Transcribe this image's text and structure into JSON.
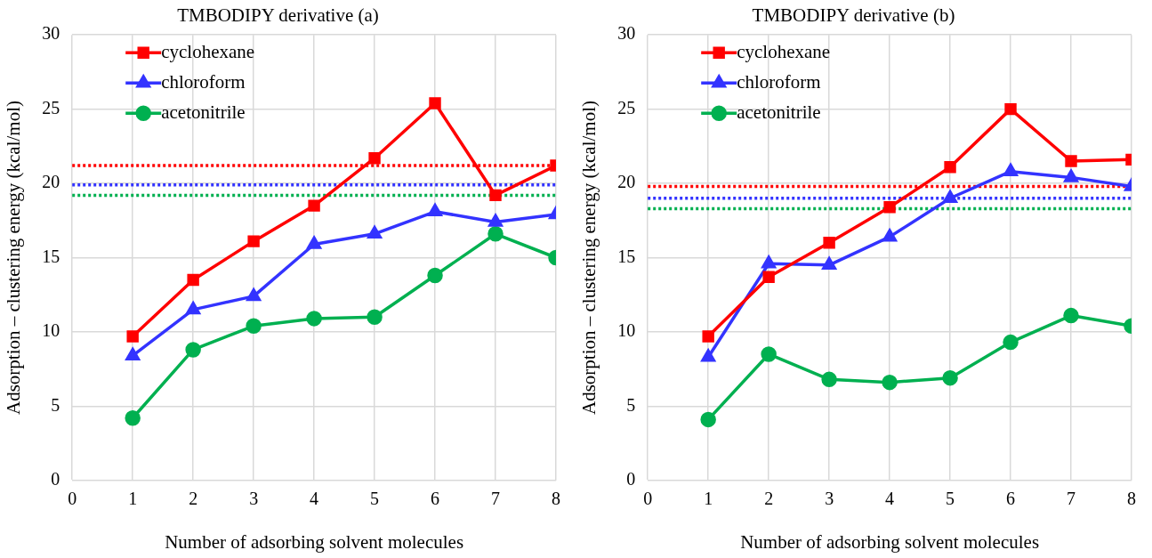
{
  "chart_data": [
    {
      "type": "line",
      "title": "TMBODIPY derivative (a)",
      "xlabel": "Number of adsorbing solvent molecules",
      "ylabel": "Adsorption – clustering energy (kcal/mol)",
      "x": [
        1,
        2,
        3,
        4,
        5,
        6,
        7,
        8
      ],
      "series": [
        {
          "name": "cyclohexane",
          "color": "#ff0000",
          "marker": "square",
          "values": [
            9.7,
            13.5,
            16.1,
            18.5,
            21.7,
            25.4,
            19.2,
            21.2
          ]
        },
        {
          "name": "chloroform",
          "color": "#3333ff",
          "marker": "triangle",
          "values": [
            8.4,
            11.5,
            12.4,
            15.9,
            16.6,
            18.1,
            17.4,
            17.9
          ]
        },
        {
          "name": "acetonitrile",
          "color": "#00b050",
          "marker": "circle",
          "values": [
            4.2,
            8.8,
            10.4,
            10.9,
            11.0,
            13.8,
            16.6,
            15.0
          ]
        }
      ],
      "ref_lines": [
        {
          "axis": "y",
          "value": 21.2,
          "color": "#ff0000",
          "line_style": "dotted"
        },
        {
          "axis": "y",
          "value": 19.9,
          "color": "#3333ff",
          "line_style": "dotted"
        },
        {
          "axis": "y",
          "value": 19.2,
          "color": "#00b050",
          "line_style": "dotted"
        }
      ],
      "xlim": [
        0,
        8
      ],
      "xticks": [
        0,
        1,
        2,
        3,
        4,
        5,
        6,
        7,
        8
      ],
      "ylim": [
        0,
        30
      ],
      "yticks": [
        0,
        5,
        10,
        15,
        20,
        25,
        30
      ],
      "grid": true,
      "legend": "top left",
      "line_style": "solid"
    },
    {
      "type": "line",
      "title": "TMBODIPY derivative (b)",
      "xlabel": "Number of adsorbing solvent molecules",
      "ylabel": "Adsorption – clustering energy (kcal/mol)",
      "x": [
        1,
        2,
        3,
        4,
        5,
        6,
        7,
        8
      ],
      "series": [
        {
          "name": "cyclohexane",
          "color": "#ff0000",
          "marker": "square",
          "values": [
            9.7,
            13.7,
            16.0,
            18.4,
            21.1,
            25.0,
            21.5,
            21.6
          ]
        },
        {
          "name": "chloroform",
          "color": "#3333ff",
          "marker": "triangle",
          "values": [
            8.3,
            14.6,
            14.5,
            16.4,
            19.0,
            20.8,
            20.4,
            19.8
          ]
        },
        {
          "name": "acetonitrile",
          "color": "#00b050",
          "marker": "circle",
          "values": [
            4.1,
            8.5,
            6.8,
            6.6,
            6.9,
            9.3,
            11.1,
            10.4
          ]
        }
      ],
      "ref_lines": [
        {
          "axis": "y",
          "value": 19.8,
          "color": "#ff0000",
          "line_style": "dotted"
        },
        {
          "axis": "y",
          "value": 19.0,
          "color": "#3333ff",
          "line_style": "dotted"
        },
        {
          "axis": "y",
          "value": 18.3,
          "color": "#00b050",
          "line_style": "dotted"
        }
      ],
      "xlim": [
        0,
        8
      ],
      "xticks": [
        0,
        1,
        2,
        3,
        4,
        5,
        6,
        7,
        8
      ],
      "ylim": [
        0,
        30
      ],
      "yticks": [
        0,
        5,
        10,
        15,
        20,
        25,
        30
      ],
      "grid": true,
      "legend": "top left",
      "line_style": "solid"
    }
  ]
}
